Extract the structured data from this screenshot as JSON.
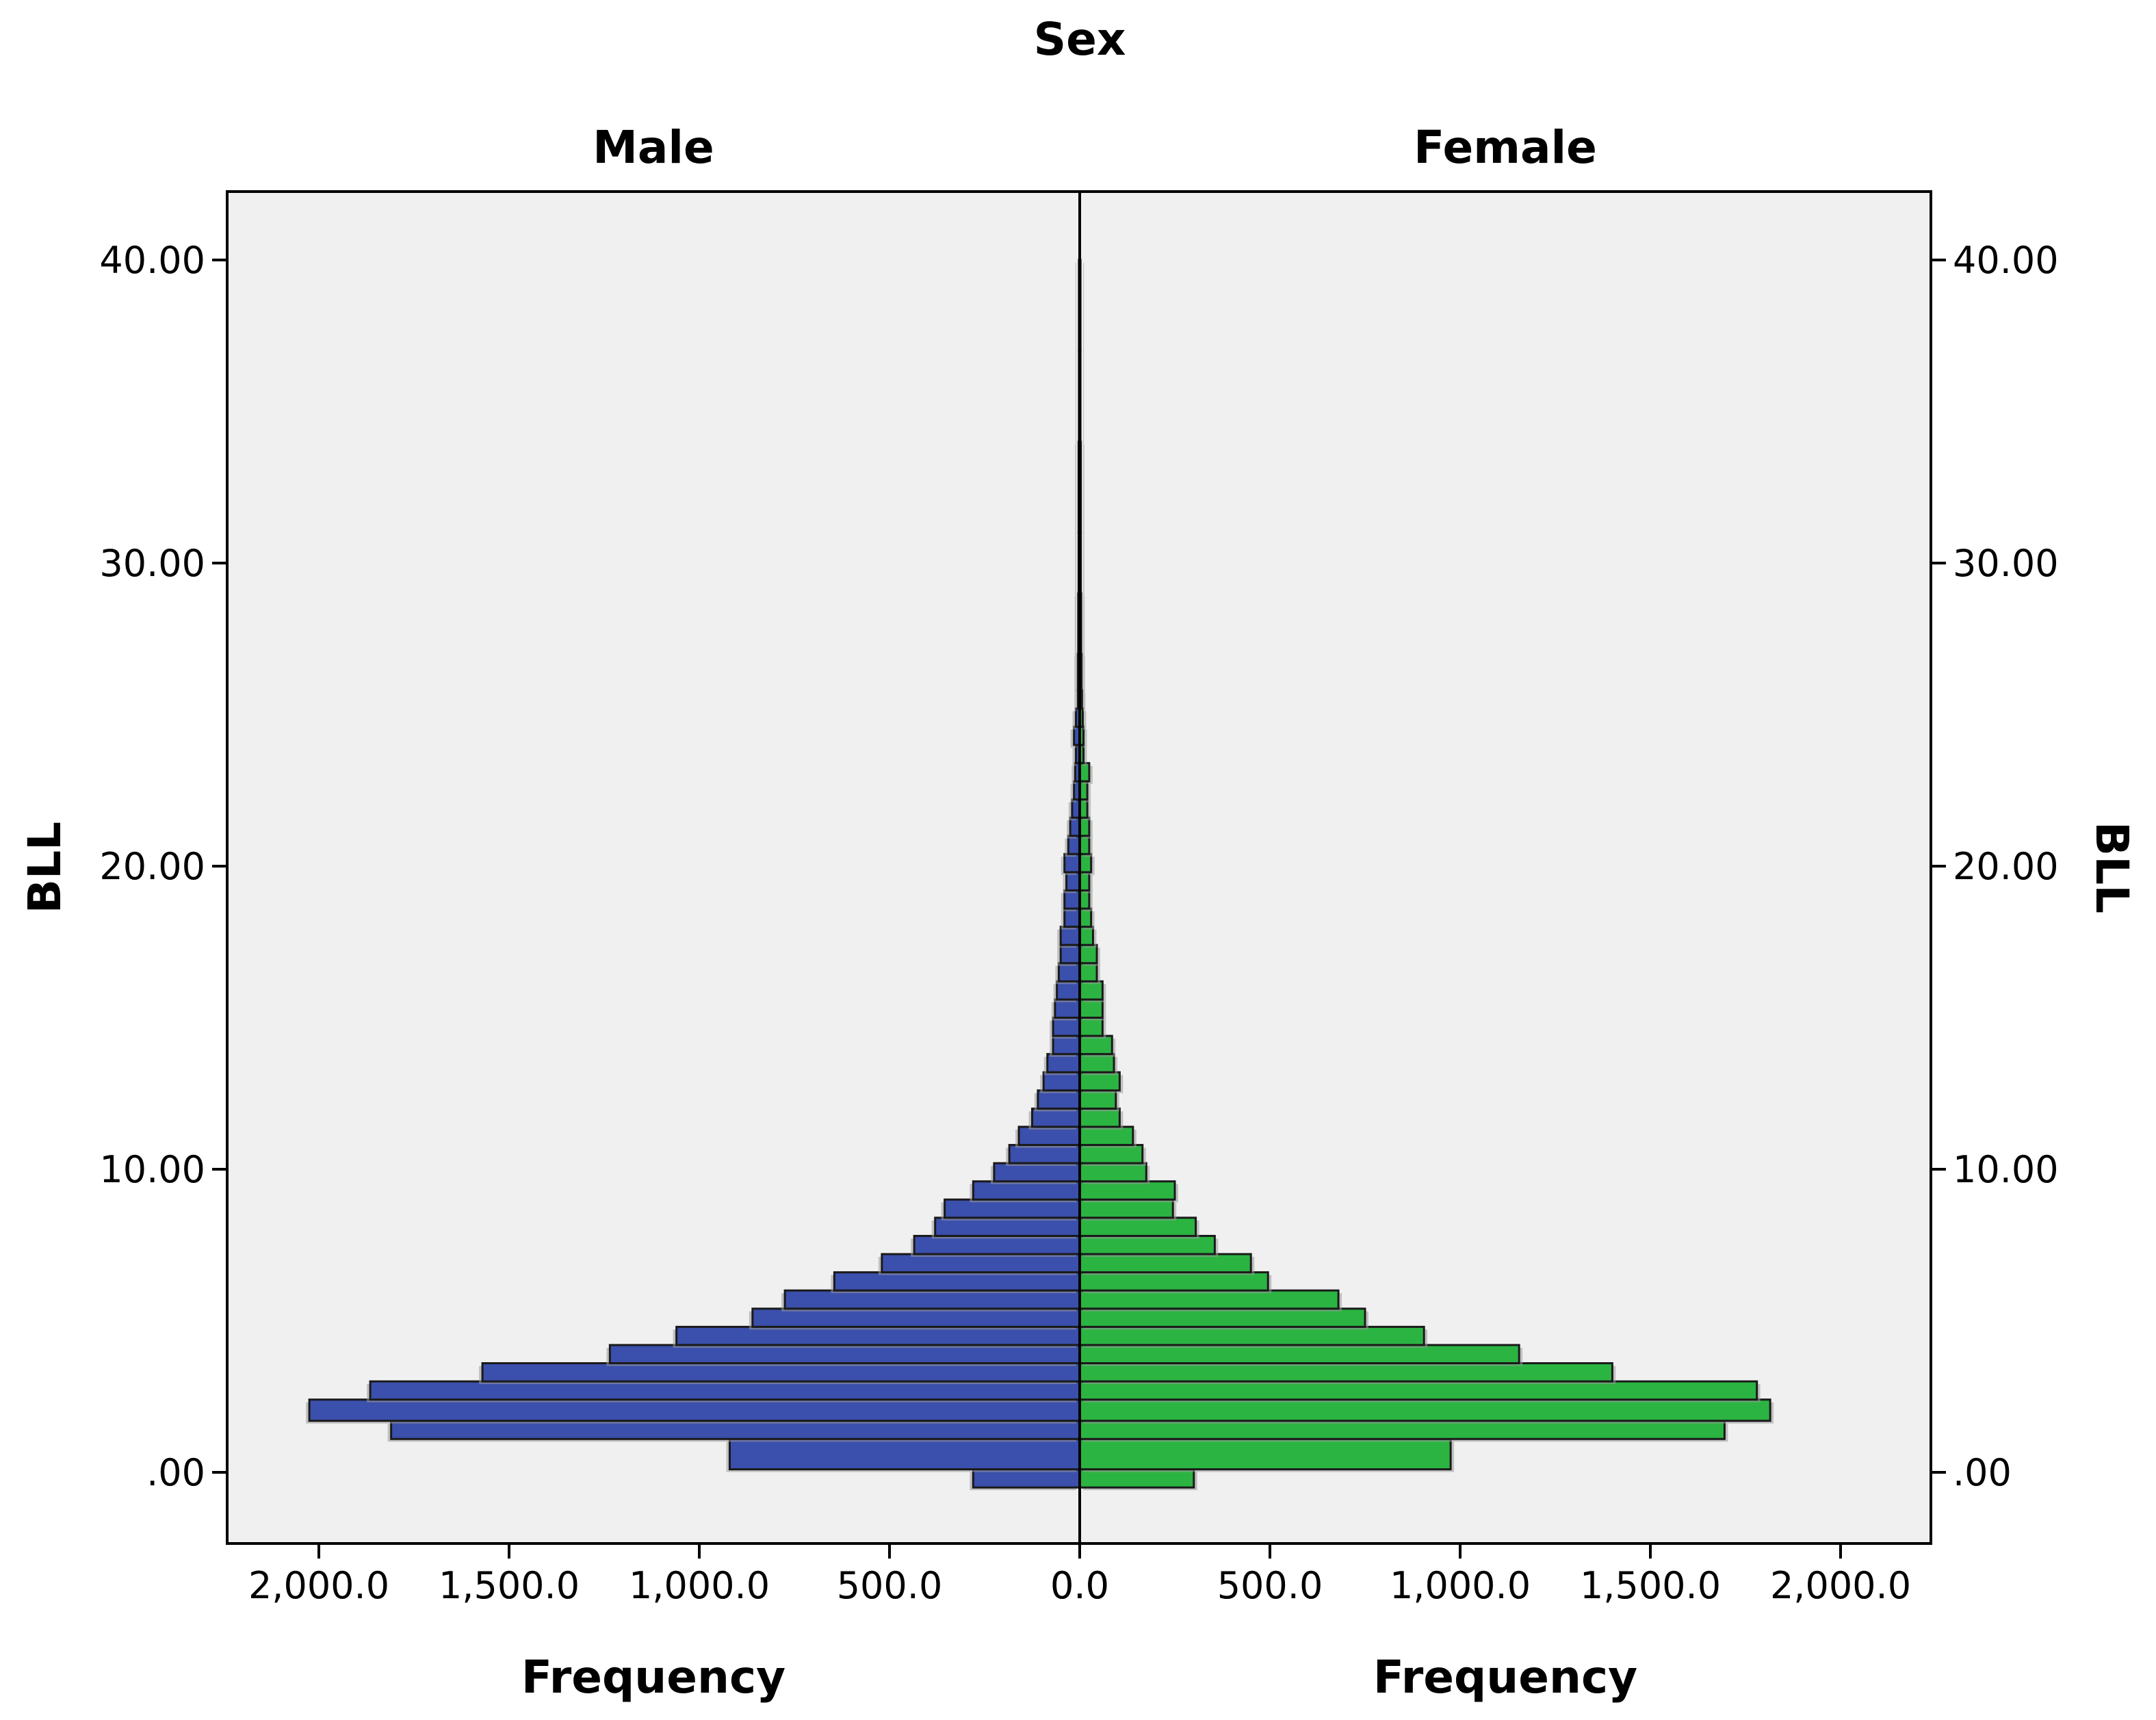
{
  "chart_data": {
    "type": "bar",
    "orientation": "horizontal-population-pyramid",
    "title": "Sex",
    "ylabel": "BLL",
    "bin_width": 1.0,
    "y_ticks": [
      0,
      10,
      20,
      30,
      40
    ],
    "y_tick_labels": [
      ".00",
      "10.00",
      "20.00",
      "30.00",
      "40.00"
    ],
    "ylim": [
      -2.2,
      42.3
    ],
    "x_ticks": [
      0,
      500,
      1000,
      1500,
      2000
    ],
    "x_tick_labels": [
      "0.0",
      "500.0",
      "1,000.0",
      "1,500.0",
      "2,000.0"
    ],
    "xlim": [
      0,
      2220
    ],
    "colors": {
      "plot_bg": "#f0f0f0",
      "bar_stroke": "#1a1a1a"
    },
    "panels": [
      {
        "name": "Male",
        "side": "left",
        "xlabel": "Frequency",
        "color": "#3b4fac",
        "bins": [
          {
            "y0": -0.5,
            "y1": 0.1,
            "value": 280
          },
          {
            "y0": 0.1,
            "y1": 1.1,
            "value": 920
          },
          {
            "y0": 1.1,
            "y1": 1.7,
            "value": 1810
          },
          {
            "y0": 1.7,
            "y1": 2.4,
            "value": 2025
          },
          {
            "y0": 2.4,
            "y1": 3.0,
            "value": 1865
          },
          {
            "y0": 3.0,
            "y1": 3.6,
            "value": 1570
          },
          {
            "y0": 3.6,
            "y1": 4.2,
            "value": 1235
          },
          {
            "y0": 4.2,
            "y1": 4.8,
            "value": 1060
          },
          {
            "y0": 4.8,
            "y1": 5.4,
            "value": 860
          },
          {
            "y0": 5.4,
            "y1": 6.0,
            "value": 775
          },
          {
            "y0": 6.0,
            "y1": 6.6,
            "value": 645
          },
          {
            "y0": 6.6,
            "y1": 7.2,
            "value": 520
          },
          {
            "y0": 7.2,
            "y1": 7.8,
            "value": 435
          },
          {
            "y0": 7.8,
            "y1": 8.4,
            "value": 380
          },
          {
            "y0": 8.4,
            "y1": 9.0,
            "value": 355
          },
          {
            "y0": 9.0,
            "y1": 9.6,
            "value": 280
          },
          {
            "y0": 9.6,
            "y1": 10.2,
            "value": 225
          },
          {
            "y0": 10.2,
            "y1": 10.8,
            "value": 185
          },
          {
            "y0": 10.8,
            "y1": 11.4,
            "value": 160
          },
          {
            "y0": 11.4,
            "y1": 12.0,
            "value": 125
          },
          {
            "y0": 12.0,
            "y1": 12.6,
            "value": 110
          },
          {
            "y0": 12.6,
            "y1": 13.2,
            "value": 95
          },
          {
            "y0": 13.2,
            "y1": 13.8,
            "value": 85
          },
          {
            "y0": 13.8,
            "y1": 14.4,
            "value": 70
          },
          {
            "y0": 14.4,
            "y1": 15.0,
            "value": 70
          },
          {
            "y0": 15.0,
            "y1": 15.6,
            "value": 65
          },
          {
            "y0": 15.6,
            "y1": 16.2,
            "value": 60
          },
          {
            "y0": 16.2,
            "y1": 16.8,
            "value": 55
          },
          {
            "y0": 16.8,
            "y1": 17.4,
            "value": 50
          },
          {
            "y0": 17.4,
            "y1": 18.0,
            "value": 50
          },
          {
            "y0": 18.0,
            "y1": 18.6,
            "value": 40
          },
          {
            "y0": 18.6,
            "y1": 19.2,
            "value": 40
          },
          {
            "y0": 19.2,
            "y1": 19.8,
            "value": 35
          },
          {
            "y0": 19.8,
            "y1": 20.4,
            "value": 40
          },
          {
            "y0": 20.4,
            "y1": 21.0,
            "value": 30
          },
          {
            "y0": 21.0,
            "y1": 21.6,
            "value": 25
          },
          {
            "y0": 21.6,
            "y1": 22.2,
            "value": 20
          },
          {
            "y0": 22.2,
            "y1": 22.8,
            "value": 15
          },
          {
            "y0": 22.8,
            "y1": 23.4,
            "value": 12
          },
          {
            "y0": 23.4,
            "y1": 24.0,
            "value": 10
          },
          {
            "y0": 24.0,
            "y1": 24.6,
            "value": 15
          },
          {
            "y0": 24.6,
            "y1": 25.2,
            "value": 10
          },
          {
            "y0": 25.2,
            "y1": 25.8,
            "value": 5
          },
          {
            "y0": 25.8,
            "y1": 27.0,
            "value": 5
          },
          {
            "y0": 27.0,
            "y1": 29.0,
            "value": 4
          },
          {
            "y0": 29.0,
            "y1": 31.0,
            "value": 3
          },
          {
            "y0": 31.0,
            "y1": 34.0,
            "value": 3
          },
          {
            "y0": 34.0,
            "y1": 37.0,
            "value": 2
          },
          {
            "y0": 37.0,
            "y1": 40.0,
            "value": 2
          }
        ]
      },
      {
        "name": "Female",
        "side": "right",
        "xlabel": "Frequency",
        "color": "#2bb442",
        "bins": [
          {
            "y0": -0.5,
            "y1": 0.1,
            "value": 300
          },
          {
            "y0": 0.1,
            "y1": 1.1,
            "value": 975
          },
          {
            "y0": 1.1,
            "y1": 1.7,
            "value": 1695
          },
          {
            "y0": 1.7,
            "y1": 2.4,
            "value": 1815
          },
          {
            "y0": 2.4,
            "y1": 3.0,
            "value": 1780
          },
          {
            "y0": 3.0,
            "y1": 3.6,
            "value": 1400
          },
          {
            "y0": 3.6,
            "y1": 4.2,
            "value": 1155
          },
          {
            "y0": 4.2,
            "y1": 4.8,
            "value": 905
          },
          {
            "y0": 4.8,
            "y1": 5.4,
            "value": 750
          },
          {
            "y0": 5.4,
            "y1": 6.0,
            "value": 680
          },
          {
            "y0": 6.0,
            "y1": 6.6,
            "value": 495
          },
          {
            "y0": 6.6,
            "y1": 7.2,
            "value": 450
          },
          {
            "y0": 7.2,
            "y1": 7.8,
            "value": 355
          },
          {
            "y0": 7.8,
            "y1": 8.4,
            "value": 305
          },
          {
            "y0": 8.4,
            "y1": 9.0,
            "value": 245
          },
          {
            "y0": 9.0,
            "y1": 9.6,
            "value": 250
          },
          {
            "y0": 9.6,
            "y1": 10.2,
            "value": 175
          },
          {
            "y0": 10.2,
            "y1": 10.8,
            "value": 165
          },
          {
            "y0": 10.8,
            "y1": 11.4,
            "value": 140
          },
          {
            "y0": 11.4,
            "y1": 12.0,
            "value": 105
          },
          {
            "y0": 12.0,
            "y1": 12.6,
            "value": 95
          },
          {
            "y0": 12.6,
            "y1": 13.2,
            "value": 105
          },
          {
            "y0": 13.2,
            "y1": 13.8,
            "value": 90
          },
          {
            "y0": 13.8,
            "y1": 14.4,
            "value": 85
          },
          {
            "y0": 14.4,
            "y1": 15.0,
            "value": 60
          },
          {
            "y0": 15.0,
            "y1": 15.6,
            "value": 60
          },
          {
            "y0": 15.6,
            "y1": 16.2,
            "value": 60
          },
          {
            "y0": 16.2,
            "y1": 16.8,
            "value": 45
          },
          {
            "y0": 16.8,
            "y1": 17.4,
            "value": 45
          },
          {
            "y0": 17.4,
            "y1": 18.0,
            "value": 35
          },
          {
            "y0": 18.0,
            "y1": 18.6,
            "value": 30
          },
          {
            "y0": 18.6,
            "y1": 19.2,
            "value": 25
          },
          {
            "y0": 19.2,
            "y1": 19.8,
            "value": 25
          },
          {
            "y0": 19.8,
            "y1": 20.4,
            "value": 30
          },
          {
            "y0": 20.4,
            "y1": 21.0,
            "value": 25
          },
          {
            "y0": 21.0,
            "y1": 21.6,
            "value": 25
          },
          {
            "y0": 21.6,
            "y1": 22.2,
            "value": 20
          },
          {
            "y0": 22.2,
            "y1": 22.8,
            "value": 20
          },
          {
            "y0": 22.8,
            "y1": 23.4,
            "value": 25
          },
          {
            "y0": 23.4,
            "y1": 24.0,
            "value": 10
          },
          {
            "y0": 24.0,
            "y1": 24.6,
            "value": 10
          },
          {
            "y0": 24.6,
            "y1": 25.2,
            "value": 8
          },
          {
            "y0": 25.2,
            "y1": 25.8,
            "value": 6
          },
          {
            "y0": 25.8,
            "y1": 27.0,
            "value": 5
          },
          {
            "y0": 27.0,
            "y1": 29.0,
            "value": 4
          },
          {
            "y0": 29.0,
            "y1": 31.0,
            "value": 3
          },
          {
            "y0": 31.0,
            "y1": 34.0,
            "value": 3
          },
          {
            "y0": 34.0,
            "y1": 37.0,
            "value": 2
          },
          {
            "y0": 37.0,
            "y1": 40.0,
            "value": 2
          }
        ]
      }
    ]
  }
}
